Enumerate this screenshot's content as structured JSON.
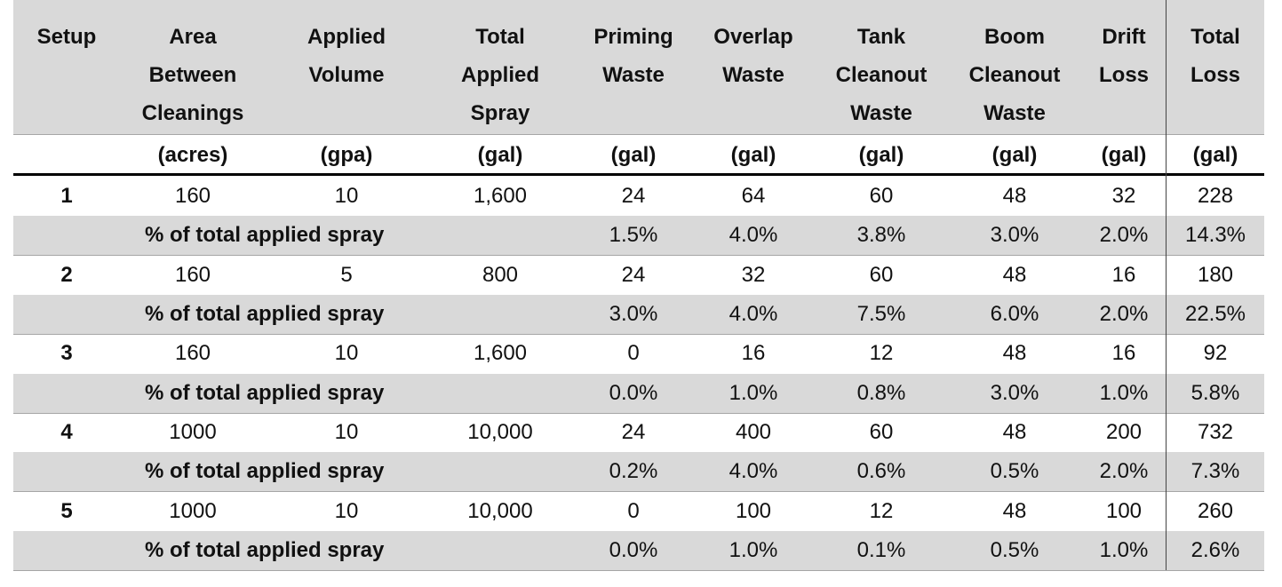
{
  "table": {
    "header": [
      [
        "Setup"
      ],
      [
        "Area",
        "Between",
        "Cleanings"
      ],
      [
        "Applied",
        "Volume"
      ],
      [
        "Total",
        "Applied",
        "Spray"
      ],
      [
        "Priming",
        "Waste"
      ],
      [
        "Overlap",
        "Waste"
      ],
      [
        "Tank",
        "Cleanout",
        "Waste"
      ],
      [
        "Boom",
        "Cleanout",
        "Waste"
      ],
      [
        "Drift",
        "Loss"
      ],
      [
        "Total",
        "Loss"
      ]
    ],
    "units": [
      "(acres)",
      "(gpa)",
      "(gal)",
      "(gal)",
      "(gal)",
      "(gal)",
      "(gal)",
      "(gal)",
      "(gal)"
    ],
    "rows": [
      {
        "setup": "1",
        "values": [
          "160",
          "10",
          "1,600",
          "24",
          "64",
          "60",
          "48",
          "32",
          "228"
        ],
        "percent_label": "% of total applied spray",
        "percents": [
          "1.5%",
          "4.0%",
          "3.8%",
          "3.0%",
          "2.0%",
          "14.3%"
        ]
      },
      {
        "setup": "2",
        "values": [
          "160",
          "5",
          "800",
          "24",
          "32",
          "60",
          "48",
          "16",
          "180"
        ],
        "percent_label": "% of total applied spray",
        "percents": [
          "3.0%",
          "4.0%",
          "7.5%",
          "6.0%",
          "2.0%",
          "22.5%"
        ]
      },
      {
        "setup": "3",
        "values": [
          "160",
          "10",
          "1,600",
          "0",
          "16",
          "12",
          "48",
          "16",
          "92"
        ],
        "percent_label": "% of total applied spray",
        "percents": [
          "0.0%",
          "1.0%",
          "0.8%",
          "3.0%",
          "1.0%",
          "5.8%"
        ]
      },
      {
        "setup": "4",
        "values": [
          "1000",
          "10",
          "10,000",
          "24",
          "400",
          "60",
          "48",
          "200",
          "732"
        ],
        "percent_label": "% of total applied spray",
        "percents": [
          "0.2%",
          "4.0%",
          "0.6%",
          "0.5%",
          "2.0%",
          "7.3%"
        ]
      },
      {
        "setup": "5",
        "values": [
          "1000",
          "10",
          "10,000",
          "0",
          "100",
          "12",
          "48",
          "100",
          "260"
        ],
        "percent_label": "% of total applied spray",
        "percents": [
          "0.0%",
          "1.0%",
          "0.1%",
          "0.5%",
          "1.0%",
          "2.6%"
        ]
      }
    ]
  }
}
